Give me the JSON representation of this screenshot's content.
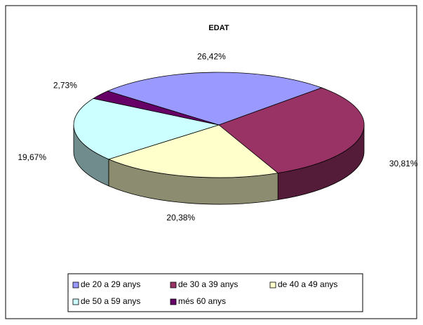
{
  "chart_data": {
    "type": "pie",
    "title": "EDAT",
    "categories": [
      "de 20 a 29 anys",
      "de 30 a 39 anys",
      "de 40 a 49 anys",
      "de 50 a 59 anys",
      "més 60 anys"
    ],
    "values": [
      26.42,
      30.81,
      20.38,
      19.67,
      2.73
    ],
    "value_labels": [
      "26,42%",
      "30,81%",
      "20,38%",
      "19,67%",
      "2,73%"
    ],
    "colors": [
      "#9999ff",
      "#993366",
      "#ffffcc",
      "#ccffff",
      "#660066"
    ],
    "legend": "bottom"
  }
}
